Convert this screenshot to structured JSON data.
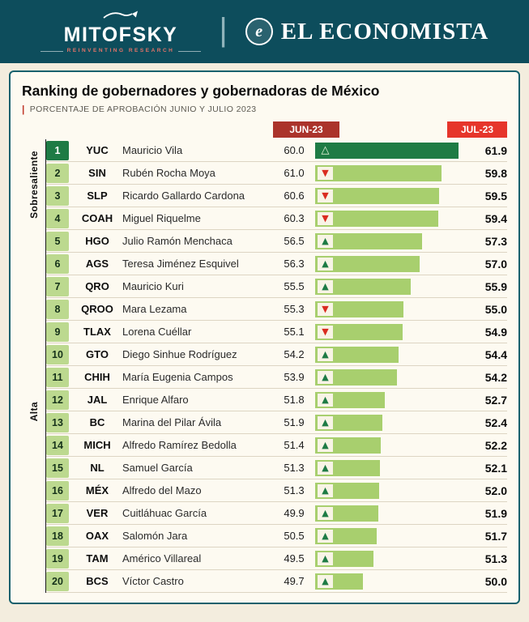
{
  "header": {
    "mitofsky": {
      "name": "MITOFSKY",
      "tagline": "REINVENTING RESEARCH"
    },
    "separator": "|",
    "economista": {
      "name": "EL ECONOMISTA"
    }
  },
  "chart_data": {
    "type": "bar",
    "title": "Ranking de gobernadores y gobernadoras de México",
    "subtitle": "PORCENTAJE DE APROBACIÓN JUNIO Y JULIO 2023",
    "columns": {
      "jun": "JUN-23",
      "jul": "JUL-23"
    },
    "bar_scale": {
      "min": 44,
      "max": 62.5
    },
    "segments": [
      {
        "label": "Sobresaliente",
        "rows": 4
      },
      {
        "label": "Alta",
        "rows": 16
      }
    ],
    "colors": {
      "top_bar": "#1e7b45",
      "bar": "#a8cf6e",
      "up": "#1e7b45",
      "down": "#da2c20",
      "jun_header": "#ab332b",
      "jul_header": "#e6352b"
    },
    "rows": [
      {
        "rank": 1,
        "state": "YUC",
        "governor": "Mauricio Vila",
        "jun": "60.0",
        "trend": "up",
        "jul": "61.9"
      },
      {
        "rank": 2,
        "state": "SIN",
        "governor": "Rubén Rocha Moya",
        "jun": "61.0",
        "trend": "down",
        "jul": "59.8"
      },
      {
        "rank": 3,
        "state": "SLP",
        "governor": "Ricardo Gallardo Cardona",
        "jun": "60.6",
        "trend": "down",
        "jul": "59.5"
      },
      {
        "rank": 4,
        "state": "COAH",
        "governor": "Miguel Riquelme",
        "jun": "60.3",
        "trend": "down",
        "jul": "59.4"
      },
      {
        "rank": 5,
        "state": "HGO",
        "governor": "Julio Ramón Menchaca",
        "jun": "56.5",
        "trend": "up",
        "jul": "57.3"
      },
      {
        "rank": 6,
        "state": "AGS",
        "governor": "Teresa Jiménez Esquivel",
        "jun": "56.3",
        "trend": "up",
        "jul": "57.0"
      },
      {
        "rank": 7,
        "state": "QRO",
        "governor": "Mauricio Kuri",
        "jun": "55.5",
        "trend": "up",
        "jul": "55.9"
      },
      {
        "rank": 8,
        "state": "QROO",
        "governor": "Mara Lezama",
        "jun": "55.3",
        "trend": "down",
        "jul": "55.0"
      },
      {
        "rank": 9,
        "state": "TLAX",
        "governor": "Lorena Cuéllar",
        "jun": "55.1",
        "trend": "down",
        "jul": "54.9"
      },
      {
        "rank": 10,
        "state": "GTO",
        "governor": "Diego Sinhue Rodríguez",
        "jun": "54.2",
        "trend": "up",
        "jul": "54.4"
      },
      {
        "rank": 11,
        "state": "CHIH",
        "governor": "María Eugenia Campos",
        "jun": "53.9",
        "trend": "up",
        "jul": "54.2"
      },
      {
        "rank": 12,
        "state": "JAL",
        "governor": "Enrique Alfaro",
        "jun": "51.8",
        "trend": "up",
        "jul": "52.7"
      },
      {
        "rank": 13,
        "state": "BC",
        "governor": "Marina del Pilar Ávila",
        "jun": "51.9",
        "trend": "up",
        "jul": "52.4"
      },
      {
        "rank": 14,
        "state": "MICH",
        "governor": "Alfredo Ramírez Bedolla",
        "jun": "51.4",
        "trend": "up",
        "jul": "52.2"
      },
      {
        "rank": 15,
        "state": "NL",
        "governor": "Samuel García",
        "jun": "51.3",
        "trend": "up",
        "jul": "52.1"
      },
      {
        "rank": 16,
        "state": "MÉX",
        "governor": "Alfredo del Mazo",
        "jun": "51.3",
        "trend": "up",
        "jul": "52.0"
      },
      {
        "rank": 17,
        "state": "VER",
        "governor": "Cuitláhuac García",
        "jun": "49.9",
        "trend": "up",
        "jul": "51.9"
      },
      {
        "rank": 18,
        "state": "OAX",
        "governor": "Salomón Jara",
        "jun": "50.5",
        "trend": "up",
        "jul": "51.7"
      },
      {
        "rank": 19,
        "state": "TAM",
        "governor": "Américo Villareal",
        "jun": "49.5",
        "trend": "up",
        "jul": "51.3"
      },
      {
        "rank": 20,
        "state": "BCS",
        "governor": "Víctor Castro",
        "jun": "49.7",
        "trend": "up",
        "jul": "50.0"
      }
    ]
  }
}
